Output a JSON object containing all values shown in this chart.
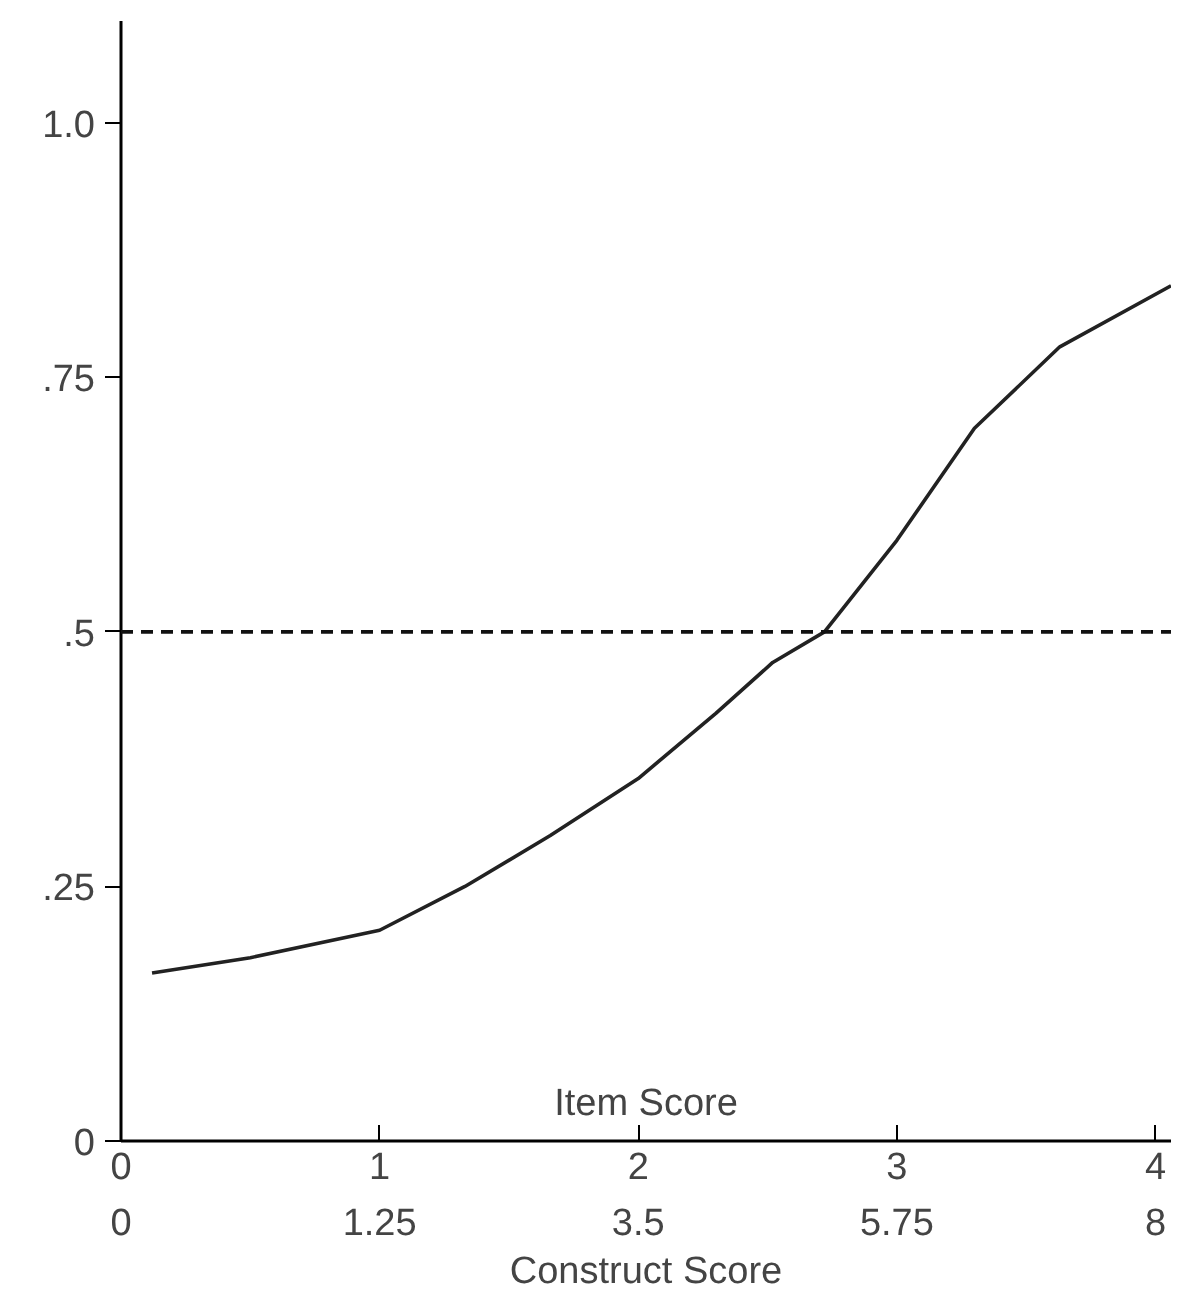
{
  "chart_data": {
    "type": "line",
    "xlabel": "Item Score",
    "x2label": "Construct Score",
    "x": [
      0.12,
      0.5,
      1.0,
      1.33,
      1.66,
      2.0,
      2.3,
      2.52,
      2.72,
      3.0,
      3.3,
      3.63,
      4.06
    ],
    "series": [
      {
        "color": "#222222",
        "values": [
          0.165,
          0.18,
          0.207,
          0.25,
          0.3,
          0.356,
          0.42,
          0.47,
          0.5,
          0.59,
          0.7,
          0.78,
          0.84
        ]
      }
    ],
    "xlim": [
      0,
      4.06
    ],
    "ylim": [
      0,
      1.1
    ],
    "xticks": [
      0,
      1,
      2,
      3,
      4
    ],
    "annotations": [
      "0",
      "1.25",
      "3.5",
      "5.75",
      "8"
    ],
    "yticks": [
      {
        "value": 0,
        "label": "0"
      },
      {
        "value": 0.25,
        "label": ".25"
      },
      {
        "value": 0.5,
        "label": ".5"
      },
      {
        "value": 0.75,
        "label": ".75"
      },
      {
        "value": 1.0,
        "label": "1.0"
      }
    ],
    "ref_lines": [
      {
        "axis": "y",
        "value": 0.5,
        "line_style": "dashed",
        "color": "#111111"
      }
    ],
    "grid": false,
    "marker": "none",
    "line_style": "solid"
  }
}
